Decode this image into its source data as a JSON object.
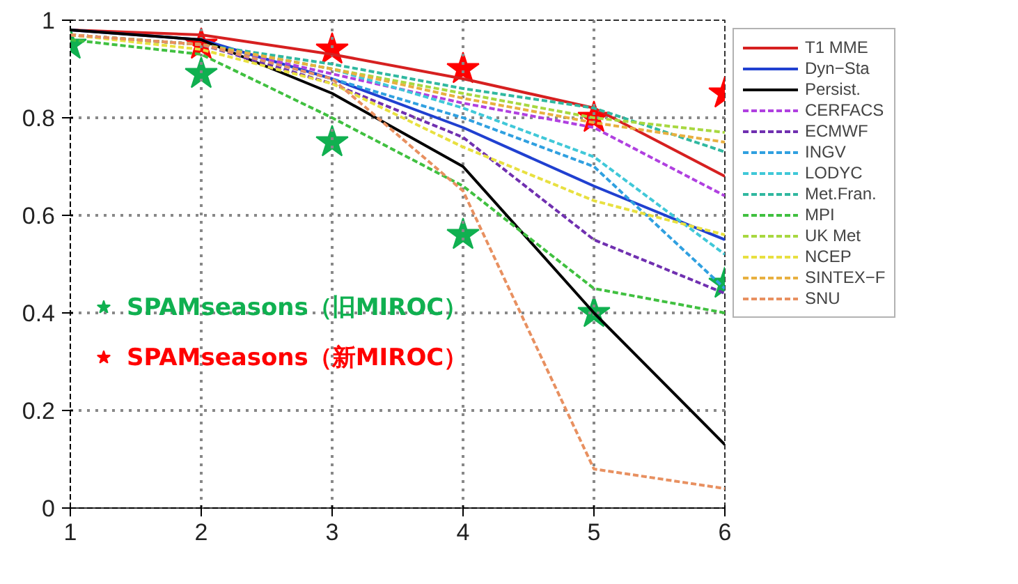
{
  "chart_data": {
    "type": "line",
    "x": [
      1,
      2,
      3,
      4,
      5,
      6
    ],
    "xlim": [
      1,
      6
    ],
    "xticks": [
      1,
      2,
      3,
      4,
      5,
      6
    ],
    "ylim": [
      0,
      1
    ],
    "yticks": [
      0,
      0.2,
      0.4,
      0.6,
      0.8,
      1
    ],
    "grid": true,
    "legend": "right",
    "series": [
      {
        "name": "T1 MME",
        "color": "#d62020",
        "line_style": "solid",
        "values": [
          0.98,
          0.97,
          0.93,
          0.88,
          0.82,
          0.68
        ]
      },
      {
        "name": "Dyn−Sta",
        "color": "#2040d0",
        "line_style": "solid",
        "values": [
          0.98,
          0.96,
          0.88,
          0.78,
          0.66,
          0.55
        ]
      },
      {
        "name": "Persist.",
        "color": "#000000",
        "line_style": "solid",
        "values": [
          0.98,
          0.96,
          0.85,
          0.7,
          0.4,
          0.13
        ]
      },
      {
        "name": "CERFACS",
        "color": "#b040e0",
        "line_style": "dashed",
        "values": [
          0.97,
          0.95,
          0.89,
          0.83,
          0.78,
          0.64
        ]
      },
      {
        "name": "ECMWF",
        "color": "#7030b0",
        "line_style": "dashed",
        "values": [
          0.97,
          0.95,
          0.87,
          0.76,
          0.55,
          0.44
        ]
      },
      {
        "name": "INGV",
        "color": "#30a0e0",
        "line_style": "dashed",
        "values": [
          0.97,
          0.95,
          0.88,
          0.8,
          0.7,
          0.45
        ]
      },
      {
        "name": "LODYC",
        "color": "#40c8d8",
        "line_style": "dashed",
        "values": [
          0.97,
          0.95,
          0.9,
          0.82,
          0.72,
          0.52
        ]
      },
      {
        "name": "Met.Fran.",
        "color": "#30b8a0",
        "line_style": "dashed",
        "values": [
          0.97,
          0.95,
          0.91,
          0.86,
          0.82,
          0.73
        ]
      },
      {
        "name": "MPI",
        "color": "#40c040",
        "line_style": "dashed",
        "values": [
          0.96,
          0.93,
          0.8,
          0.66,
          0.45,
          0.4
        ]
      },
      {
        "name": "UK Met",
        "color": "#a8d840",
        "line_style": "dashed",
        "values": [
          0.97,
          0.95,
          0.9,
          0.85,
          0.8,
          0.77
        ]
      },
      {
        "name": "NCEP",
        "color": "#e8e040",
        "line_style": "dashed",
        "values": [
          0.97,
          0.94,
          0.87,
          0.74,
          0.63,
          0.56
        ]
      },
      {
        "name": "SINTEX−F",
        "color": "#e8b040",
        "line_style": "dashed",
        "values": [
          0.97,
          0.95,
          0.9,
          0.84,
          0.79,
          0.75
        ]
      },
      {
        "name": "SNU",
        "color": "#e89060",
        "line_style": "dashed",
        "values": [
          0.97,
          0.95,
          0.88,
          0.65,
          0.08,
          0.04
        ]
      },
      {
        "name": "SPAMseasons（旧MIROC）",
        "type": "scatter",
        "marker": "star",
        "color": "#10b050",
        "values": [
          0.95,
          0.89,
          0.75,
          0.56,
          0.4,
          0.46
        ]
      },
      {
        "name": "SPAMseasons（新MIROC）",
        "type": "scatter",
        "marker": "star",
        "color": "#ff0000",
        "values": [
          null,
          0.95,
          0.94,
          0.9,
          0.8,
          0.85
        ]
      }
    ]
  }
}
